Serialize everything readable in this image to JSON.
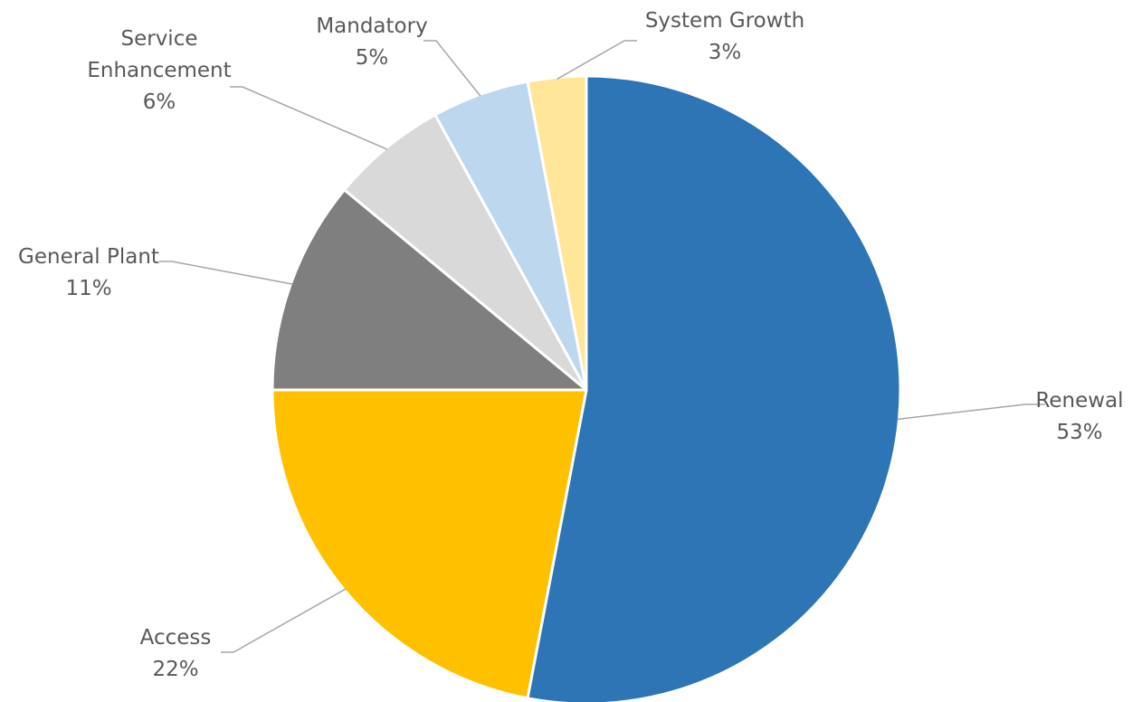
{
  "chart_data": {
    "type": "pie",
    "title": "",
    "start_angle_deg": 0,
    "direction": "clockwise",
    "slices": [
      {
        "label_lines": [
          "Renewal"
        ],
        "value": 53,
        "percent_label": "53%",
        "color": "#2e75b6"
      },
      {
        "label_lines": [
          "Access"
        ],
        "value": 22,
        "percent_label": "22%",
        "color": "#ffc000"
      },
      {
        "label_lines": [
          "General Plant"
        ],
        "value": 11,
        "percent_label": "11%",
        "color": "#7f7f7f"
      },
      {
        "label_lines": [
          "Service",
          "Enhancement"
        ],
        "value": 6,
        "percent_label": "6%",
        "color": "#d9d9d9"
      },
      {
        "label_lines": [
          "Mandatory"
        ],
        "value": 5,
        "percent_label": "5%",
        "color": "#bdd7ee"
      },
      {
        "label_lines": [
          "System Growth"
        ],
        "value": 3,
        "percent_label": "3%",
        "color": "#ffe699"
      }
    ],
    "legend": "none",
    "data_labels": "outside-with-leader-lines"
  }
}
